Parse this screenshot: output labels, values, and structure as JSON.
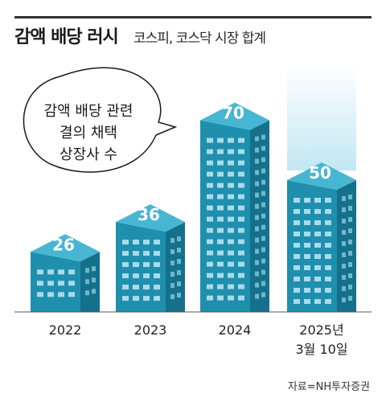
{
  "header": {
    "title": "감액 배당 러시",
    "subtitle": "코스피, 코스닥 시장 합계"
  },
  "callout": {
    "lines": [
      "감액 배당 관련",
      "결의 채택",
      "상장사 수"
    ]
  },
  "source": "자료=NH투자증권",
  "colors": {
    "building_front": "#1f8fae",
    "building_side": "#15708b",
    "building_top": "#47b6d2",
    "window": "#a9dbe9",
    "highlight_glow": "#c2e7f3",
    "value_text": "#ffffff"
  },
  "chart_data": {
    "type": "bar",
    "categories": [
      "2022",
      "2023",
      "2024",
      "2025년\n3월 10일"
    ],
    "values": [
      26,
      36,
      70,
      50
    ],
    "title": "감액 배당 러시",
    "subtitle": "코스피, 코스닥 시장 합계",
    "xlabel": "",
    "ylabel": "",
    "grid": false,
    "highlight_index": 3
  }
}
